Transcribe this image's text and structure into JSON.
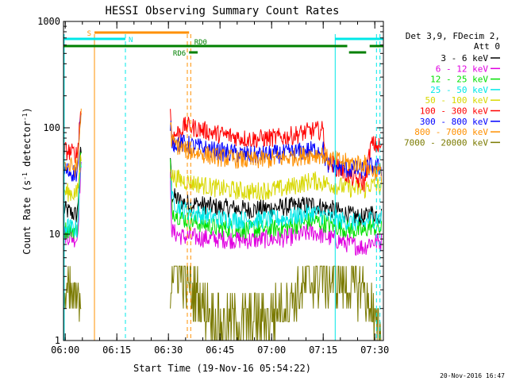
{
  "chart_data": {
    "type": "line",
    "title": "HESSI Observing Summary Count Rates",
    "xlabel": "Start Time (19-Nov-16 05:54:22)",
    "ylabel_main": "Count Rate (s",
    "ylabel_sup1": "-1",
    "ylabel_mid": " detector",
    "ylabel_sup2": "-1",
    "ylabel_end": ")",
    "yscale": "log",
    "ylim": [
      1,
      1000
    ],
    "xlim_minutes": [
      5.5,
      98.5
    ],
    "x_ticks": [
      {
        "label": "06:00",
        "minute": 6
      },
      {
        "label": "06:15",
        "minute": 21
      },
      {
        "label": "06:30",
        "minute": 36
      },
      {
        "label": "06:45",
        "minute": 51
      },
      {
        "label": "07:00",
        "minute": 66
      },
      {
        "label": "07:15",
        "minute": 81
      },
      {
        "label": "07:30",
        "minute": 96
      }
    ],
    "y_ticks": [
      {
        "label": "1",
        "value": 1
      },
      {
        "label": "10",
        "value": 10
      },
      {
        "label": "100",
        "value": 100
      },
      {
        "label": "1000",
        "value": 1000
      }
    ],
    "legend_header": [
      "Det 3,9, FDecim 2,",
      "Att 0"
    ],
    "legend_placement": "right",
    "series": [
      {
        "name": "3 - 6 keV",
        "color": "#000000",
        "points": [
          [
            5.6,
            17
          ],
          [
            9.5,
            15
          ],
          [
            10.5,
            60
          ],
          [
            36.5,
            60
          ],
          [
            37,
            23
          ],
          [
            40,
            20
          ],
          [
            50,
            18
          ],
          [
            60,
            17
          ],
          [
            70,
            18
          ],
          [
            78,
            19
          ],
          [
            84,
            17
          ],
          [
            89,
            15
          ],
          [
            93,
            14
          ],
          [
            94.5,
            16
          ],
          [
            98,
            15
          ]
        ]
      },
      {
        "name": "6 - 12 keV",
        "color": "#e000e0",
        "points": [
          [
            5.6,
            10
          ],
          [
            9.5,
            9
          ],
          [
            10.5,
            40
          ],
          [
            36.5,
            40
          ],
          [
            37,
            10.5
          ],
          [
            40,
            9.5
          ],
          [
            50,
            9
          ],
          [
            60,
            8.8
          ],
          [
            70,
            9.2
          ],
          [
            78,
            10.5
          ],
          [
            84,
            9
          ],
          [
            89,
            8
          ],
          [
            93,
            7.5
          ],
          [
            94.5,
            8.5
          ],
          [
            98,
            8.5
          ]
        ]
      },
      {
        "name": "12 - 25 keV",
        "color": "#00e000",
        "points": [
          [
            5.6,
            11
          ],
          [
            9.5,
            11
          ],
          [
            10.5,
            55
          ],
          [
            36.5,
            55
          ],
          [
            37,
            17
          ],
          [
            40,
            14
          ],
          [
            50,
            11.5
          ],
          [
            60,
            11
          ],
          [
            70,
            11.5
          ],
          [
            78,
            13.5
          ],
          [
            84,
            12
          ],
          [
            89,
            11
          ],
          [
            93,
            10.5
          ],
          [
            94.5,
            12
          ],
          [
            98,
            11
          ]
        ]
      },
      {
        "name": "25 - 50 keV",
        "color": "#00e8e8",
        "points": [
          [
            5.6,
            12
          ],
          [
            9.5,
            11
          ],
          [
            10.5,
            45
          ],
          [
            36.5,
            45
          ],
          [
            37,
            21
          ],
          [
            40,
            17
          ],
          [
            50,
            14
          ],
          [
            60,
            13.5
          ],
          [
            70,
            14
          ],
          [
            78,
            16
          ],
          [
            84,
            14
          ],
          [
            89,
            13
          ],
          [
            93,
            12.5
          ],
          [
            94.5,
            14
          ],
          [
            98,
            14
          ]
        ]
      },
      {
        "name": "50 - 100 keV",
        "color": "#d8d800",
        "points": [
          [
            5.6,
            25
          ],
          [
            9.5,
            24
          ],
          [
            10.5,
            50
          ],
          [
            36.5,
            50
          ],
          [
            37,
            35
          ],
          [
            40,
            32
          ],
          [
            50,
            27
          ],
          [
            60,
            25
          ],
          [
            70,
            27
          ],
          [
            78,
            32
          ],
          [
            84,
            29
          ],
          [
            89,
            27
          ],
          [
            93,
            26
          ],
          [
            94.5,
            29
          ],
          [
            98,
            28
          ]
        ]
      },
      {
        "name": "100 - 300 keV",
        "color": "#ff0000",
        "points": [
          [
            5.6,
            62
          ],
          [
            9.5,
            56
          ],
          [
            10.5,
            150
          ],
          [
            36.5,
            150
          ],
          [
            37,
            80
          ],
          [
            41,
            105
          ],
          [
            50,
            88
          ],
          [
            60,
            78
          ],
          [
            70,
            82
          ],
          [
            78,
            94
          ],
          [
            81,
            95
          ],
          [
            82,
            50
          ],
          [
            88,
            36
          ],
          [
            93,
            30
          ],
          [
            95,
            70
          ],
          [
            98,
            66
          ]
        ]
      },
      {
        "name": "300 - 800 keV",
        "color": "#0000ff",
        "points": [
          [
            5.6,
            40
          ],
          [
            9.5,
            37
          ],
          [
            10.5,
            120
          ],
          [
            36.5,
            120
          ],
          [
            37,
            74
          ],
          [
            41,
            70
          ],
          [
            50,
            60
          ],
          [
            60,
            55
          ],
          [
            70,
            57
          ],
          [
            78,
            62
          ],
          [
            81,
            62
          ],
          [
            82,
            45
          ],
          [
            88,
            41
          ],
          [
            93,
            40
          ],
          [
            94.5,
            43
          ],
          [
            98,
            42
          ]
        ]
      },
      {
        "name": "800 - 7000 keV",
        "color": "#ff9000",
        "points": [
          [
            5.6,
            44
          ],
          [
            9.5,
            42
          ],
          [
            10.5,
            130
          ],
          [
            36.5,
            130
          ],
          [
            37,
            73
          ],
          [
            41,
            62
          ],
          [
            50,
            53
          ],
          [
            60,
            49
          ],
          [
            70,
            52
          ],
          [
            78,
            56
          ],
          [
            81,
            56
          ],
          [
            82,
            52
          ],
          [
            88,
            47
          ],
          [
            93,
            46
          ],
          [
            94.5,
            40
          ],
          [
            98,
            38
          ]
        ]
      },
      {
        "name": "7000 - 20000 keV",
        "color": "#7a7a00",
        "points": [
          [
            5.6,
            2.6
          ],
          [
            9.5,
            2.2
          ],
          [
            10.5,
            2.8
          ],
          [
            36.5,
            2.8
          ],
          [
            37,
            5
          ],
          [
            40,
            4
          ],
          [
            45,
            2.5
          ],
          [
            50,
            1.6
          ],
          [
            55,
            1.5
          ],
          [
            60,
            1.5
          ],
          [
            65,
            1.6
          ],
          [
            70,
            2.2
          ],
          [
            75,
            3
          ],
          [
            80,
            4
          ],
          [
            85,
            3.6
          ],
          [
            90,
            3.2
          ],
          [
            93,
            3.1
          ],
          [
            94,
            2
          ],
          [
            95,
            2.4
          ],
          [
            96,
            1.3
          ],
          [
            98,
            1.2
          ]
        ]
      }
    ],
    "vertical_lines": [
      {
        "minute": 5.7,
        "color": "#00e8e8",
        "style": "solid"
      },
      {
        "minute": 14.5,
        "color": "#ff9000",
        "style": "solid"
      },
      {
        "minute": 23.5,
        "color": "#00e8e8",
        "style": "dashed"
      },
      {
        "minute": 41.5,
        "color": "#ff9000",
        "style": "dashed"
      },
      {
        "minute": 42.5,
        "color": "#ff9000",
        "style": "dashed"
      },
      {
        "minute": 84.5,
        "color": "#00e8e8",
        "style": "solid"
      },
      {
        "minute": 96.5,
        "color": "#00e8e8",
        "style": "dashed"
      },
      {
        "minute": 97.5,
        "color": "#00e8e8",
        "style": "dashed"
      }
    ],
    "flags": [
      {
        "label": "S",
        "color": "#ff9000",
        "start": 14.5,
        "end": 42.0,
        "row": 0,
        "label_side": "left"
      },
      {
        "label": "N",
        "color": "#00e8e8",
        "start": 5.6,
        "end": 23.5,
        "row": 1,
        "label_side": "end"
      },
      {
        "label": "N",
        "color": "#00e8e8",
        "start": 84.5,
        "end": 98.5,
        "row": 1,
        "label_side": "none"
      },
      {
        "label": "RD0",
        "color": "#008000",
        "start": 5.6,
        "end": 88.0,
        "row": 2,
        "label_side": "above"
      },
      {
        "label": "RD0",
        "color": "#008000",
        "start": 94.5,
        "end": 98.5,
        "row": 2,
        "label_side": "none"
      },
      {
        "label": "RD6",
        "color": "#008000",
        "start": 42.0,
        "end": 44.5,
        "row": 3,
        "label_side": "left"
      },
      {
        "label": "RD6",
        "color": "#008000",
        "start": 88.5,
        "end": 93.5,
        "row": 3,
        "label_side": "none"
      }
    ]
  },
  "footer_timestamp": "20-Nov-2016 16:47"
}
